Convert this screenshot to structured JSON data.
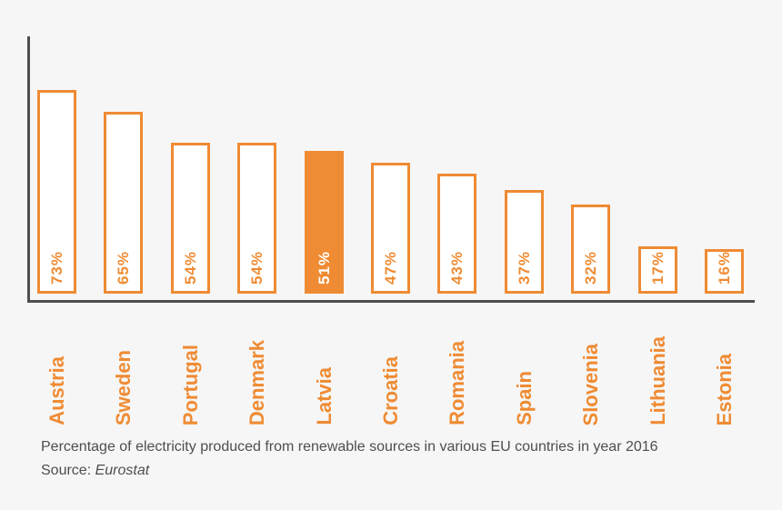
{
  "chart_data": {
    "type": "bar",
    "categories": [
      "Austria",
      "Sweden",
      "Portugal",
      "Denmark",
      "Latvia",
      "Croatia",
      "Romania",
      "Spain",
      "Slovenia",
      "Lithuania",
      "Estonia"
    ],
    "values": [
      73,
      65,
      54,
      54,
      51,
      47,
      43,
      37,
      32,
      17,
      16
    ],
    "value_labels": [
      "73%",
      "65%",
      "54%",
      "54%",
      "51%",
      "47%",
      "43%",
      "37%",
      "32%",
      "17%",
      "16%"
    ],
    "highlight_category": "Latvia",
    "highlight_index": 4,
    "orientation": "vertical",
    "grid": false,
    "ylim": [
      0,
      75
    ],
    "xlabel": "",
    "ylabel": "",
    "title": "Percentage of electricity produced from renewable sources in various EU countries in year 2016",
    "legend": null
  },
  "caption": {
    "title": "Percentage of electricity produced from renewable sources in various EU countries in year 2016",
    "source_label": "Source:",
    "source_value": "Eurostat"
  },
  "colors": {
    "accent_orange": "#ef8b33",
    "bar_fill": "#ffffff",
    "highlight_fill": "#ef8b33",
    "highlight_value_text": "#ffffff",
    "axis": "#4f4f4f",
    "background": "#f6f6f6",
    "caption_text": "#4e4e4e"
  }
}
